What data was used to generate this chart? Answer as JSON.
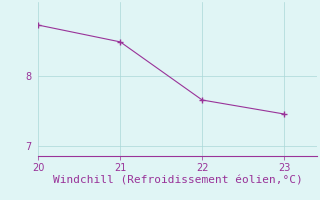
{
  "x": [
    20,
    21,
    22,
    23
  ],
  "y": [
    8.72,
    8.48,
    7.65,
    7.45
  ],
  "line_color": "#993399",
  "marker": "+",
  "marker_size": 4,
  "background_color": "#e0f5f5",
  "xlabel": "Windchill (Refroidissement éolien,°C)",
  "xlabel_color": "#993399",
  "xlabel_fontsize": 8,
  "tick_color": "#993399",
  "tick_fontsize": 7,
  "grid_color": "#aad8d8",
  "xlim": [
    20,
    23.4
  ],
  "ylim": [
    6.85,
    9.05
  ],
  "yticks": [
    7,
    8
  ],
  "xticks": [
    20,
    21,
    22,
    23
  ],
  "spine_color": "#993399",
  "spine_bottom_color": "#993399"
}
